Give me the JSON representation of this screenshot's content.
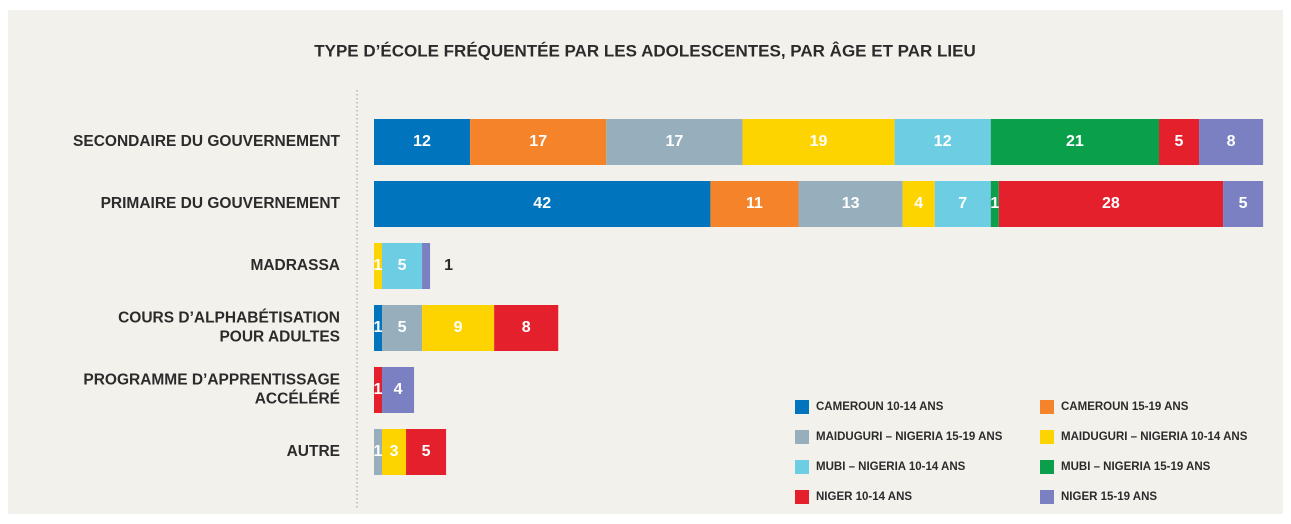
{
  "chart_data": {
    "type": "stacked-bar-horizontal",
    "title": "TYPE D’ÉCOLE FRÉQUENTÉE PAR LES ADOLESCENTES, PAR ÂGE ET PAR LIEU",
    "categories": [
      "SECONDAIRE DU GOUVERNEMENT",
      "PRIMAIRE DU GOUVERNEMENT",
      "MADRASSA",
      "COURS D’ALPHABÉTISATION\nPOUR ADULTES",
      "PROGRAMME D’APPRENTISSAGE\nACCÉLÉRÉ",
      "AUTRE"
    ],
    "series": [
      {
        "name": "CAMEROUN 10-14 ANS",
        "color": "#0075be",
        "values": [
          12,
          42,
          null,
          1,
          null,
          null
        ]
      },
      {
        "name": "CAMEROUN 15-19 ANS",
        "color": "#f5832a",
        "values": [
          17,
          11,
          null,
          null,
          null,
          null
        ]
      },
      {
        "name": "MAIDUGURI – NIGERIA 15-19 ANS",
        "color": "#97afbc",
        "values": [
          17,
          13,
          null,
          5,
          null,
          1
        ]
      },
      {
        "name": "MAIDUGURI – NIGERIA 10-14 ANS",
        "color": "#fdd400",
        "values": [
          19,
          4,
          1,
          9,
          null,
          3
        ]
      },
      {
        "name": "MUBI – NIGERIA 10-14 ANS",
        "color": "#6dcde3",
        "values": [
          12,
          7,
          5,
          null,
          null,
          null
        ]
      },
      {
        "name": "MUBI – NIGERIA 15-19 ANS",
        "color": "#0aa04b",
        "values": [
          21,
          1,
          null,
          null,
          null,
          null
        ]
      },
      {
        "name": "NIGER 10-14 ANS",
        "color": "#e3202c",
        "values": [
          5,
          28,
          null,
          8,
          1,
          5
        ]
      },
      {
        "name": "NIGER 15-19 ANS",
        "color": "#7b80c2",
        "values": [
          8,
          5,
          1,
          null,
          4,
          null
        ]
      }
    ]
  }
}
